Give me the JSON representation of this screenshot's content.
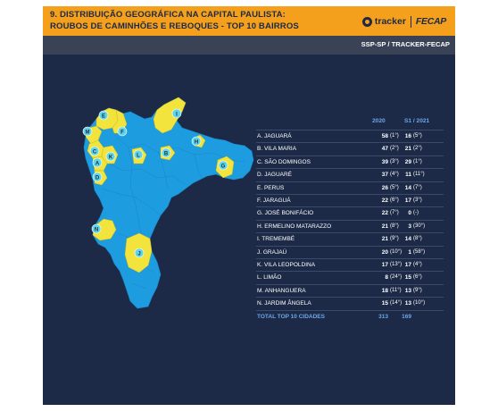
{
  "header": {
    "title_line1": "9. DISTRIBUIÇÃO GEOGRÁFICA NA CAPITAL PAULISTA:",
    "title_line2": "ROUBOS DE CAMINHÕES E REBOQUES - TOP 10 BAIRROS",
    "logo_tracker": "tracker",
    "logo_fecap": "FECAP"
  },
  "source": "SSP-SP / TRACKER-FECAP",
  "colors": {
    "accent": "#f4a01c",
    "background": "#1d2a47",
    "map_blue": "#1e9ce0",
    "map_yellow": "#f2e43c",
    "marker": "#5fd6e8",
    "highlight_text": "#6aa7e8"
  },
  "map": {
    "markers": [
      "A",
      "B",
      "C",
      "D",
      "E",
      "F",
      "G",
      "H",
      "I",
      "J",
      "K",
      "L",
      "M",
      "N"
    ]
  },
  "chart_data": {
    "type": "table",
    "columns": [
      "2020",
      "S1 / 2021"
    ],
    "rows": [
      {
        "name": "A. JAGUARÁ",
        "v2020": 58,
        "rank2020": "(1°)",
        "v2021": 16,
        "rank2021": "(5°)"
      },
      {
        "name": "B. VILA MARIA",
        "v2020": 47,
        "rank2020": "(2°)",
        "v2021": 21,
        "rank2021": "(2°)"
      },
      {
        "name": "C. SÃO DOMINGOS",
        "v2020": 39,
        "rank2020": "(3°)",
        "v2021": 29,
        "rank2021": "(1°)"
      },
      {
        "name": "D. JAGUARÉ",
        "v2020": 37,
        "rank2020": "(4°)",
        "v2021": 11,
        "rank2021": "(11°)"
      },
      {
        "name": "E. PERUS",
        "v2020": 26,
        "rank2020": "(5°)",
        "v2021": 14,
        "rank2021": "(7°)"
      },
      {
        "name": "F. JARAGUÁ",
        "v2020": 22,
        "rank2020": "(6°)",
        "v2021": 17,
        "rank2021": "(3°)"
      },
      {
        "name": "G. JOSÉ BONIFÁCIO",
        "v2020": 22,
        "rank2020": "(7°)",
        "v2021": 0,
        "rank2021": "(-)"
      },
      {
        "name": "H. ERMELINO MATARAZZO",
        "v2020": 21,
        "rank2020": "(8°)",
        "v2021": 3,
        "rank2021": "(30°)"
      },
      {
        "name": "I. TREMEMBÉ",
        "v2020": 21,
        "rank2020": "(9°)",
        "v2021": 14,
        "rank2021": "(8°)"
      },
      {
        "name": "J. GRAJAÚ",
        "v2020": 20,
        "rank2020": "(10°)",
        "v2021": 1,
        "rank2021": "(58°)"
      },
      {
        "name": "K. VILA LEOPOLDINA",
        "v2020": 17,
        "rank2020": "(13°)",
        "v2021": 17,
        "rank2021": "(4°)"
      },
      {
        "name": "L. LIMÃO",
        "v2020": 8,
        "rank2020": "(24°)",
        "v2021": 15,
        "rank2021": "(6°)"
      },
      {
        "name": "M. ANHANGUERA",
        "v2020": 18,
        "rank2020": "(11°)",
        "v2021": 13,
        "rank2021": "(9°)"
      },
      {
        "name": "N. JARDIM ÂNGELA",
        "v2020": 15,
        "rank2020": "(14°)",
        "v2021": 13,
        "rank2021": "(10°)"
      }
    ],
    "total": {
      "name": "TOTAL TOP 10 CIDADES",
      "v2020": 313,
      "v2021": 169
    }
  }
}
